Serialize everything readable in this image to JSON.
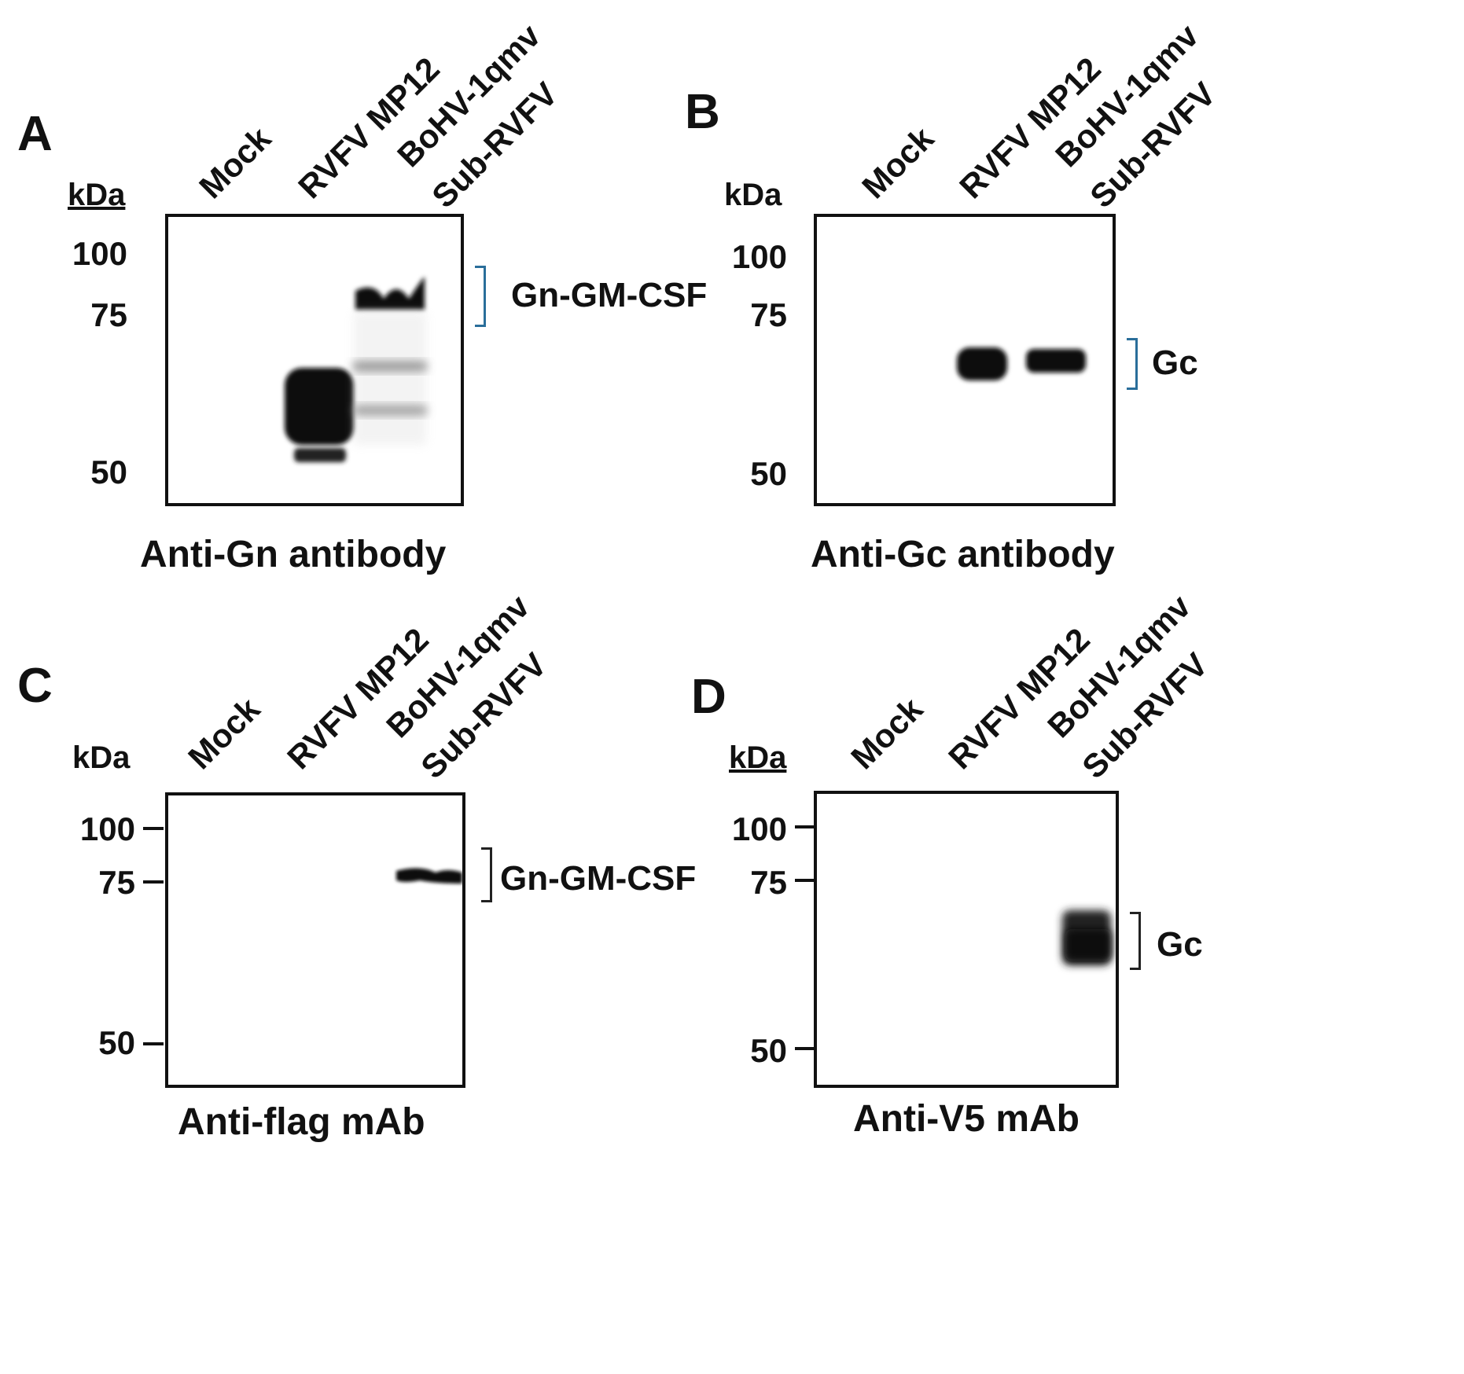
{
  "lanes": [
    "Mock",
    "RVFV MP12",
    "BoHV-1qmv",
    "Sub-RVFV"
  ],
  "unit": "kDa",
  "panels": [
    {
      "letter": "A",
      "markers": [
        "100",
        "75",
        "50"
      ],
      "band_label": "Gn-GM-CSF",
      "caption": "Anti-Gn antibody"
    },
    {
      "letter": "B",
      "markers": [
        "100",
        "75",
        "50"
      ],
      "band_label": "Gc",
      "caption": "Anti-Gc antibody"
    },
    {
      "letter": "C",
      "markers": [
        "100",
        "75",
        "50"
      ],
      "band_label": "Gn-GM-CSF",
      "caption": "Anti-flag mAb"
    },
    {
      "letter": "D",
      "markers": [
        "100",
        "75",
        "50"
      ],
      "band_label": "Gc",
      "caption": "Anti-V5 mAb"
    }
  ],
  "colors": {
    "band": "#111111",
    "bracket_ab": "#2a6e9a",
    "bracket_cd": "#222222"
  }
}
